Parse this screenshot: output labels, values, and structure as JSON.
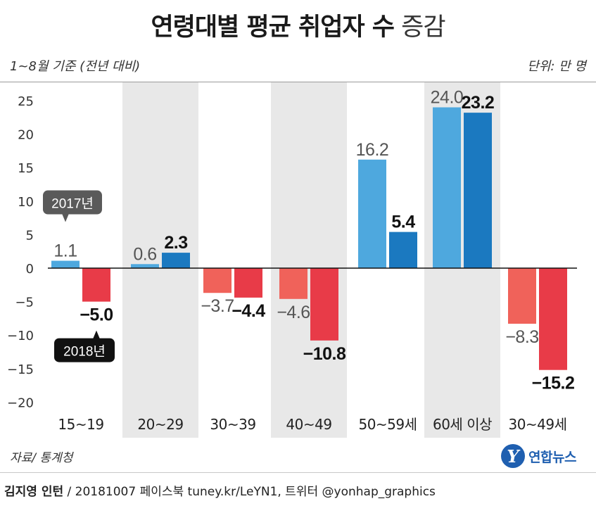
{
  "title": {
    "main": "연령대별 평균 취업자 수",
    "accent": "증감"
  },
  "subtitle": "1~8월 기준 (전년 대비)",
  "unit": "단위: 만 명",
  "source": "자료/ 통계청",
  "logo": {
    "mark": "Y",
    "text": "연합뉴스"
  },
  "credit": {
    "author": "김지영 인턴",
    "rest": " / 20181007  페이스북 tuney.kr/LeYN1, 트위터 @yonhap_graphics"
  },
  "chart_data": {
    "type": "bar",
    "title": "연령대별 평균 취업자 수 증감",
    "xlabel": "",
    "ylabel": "",
    "ylim": [
      -20,
      25
    ],
    "yticks": [
      25,
      20,
      15,
      10,
      5,
      0,
      -5,
      -10,
      -15,
      -20
    ],
    "ytick_labels": [
      "25",
      "20",
      "15",
      "10",
      "5",
      "0",
      "−5",
      "−10",
      "−15",
      "−20"
    ],
    "categories": [
      "15~19",
      "20~29",
      "30~39",
      "40~49",
      "50~59세",
      "60세 이상",
      "30~49세"
    ],
    "series": [
      {
        "name": "2017년",
        "values": [
          1.1,
          0.6,
          -3.7,
          -4.6,
          16.2,
          24.0,
          -8.3
        ],
        "labels": [
          "1.1",
          "0.6",
          "−3.7",
          "−4.6",
          "16.2",
          "24.0",
          "−8.3"
        ]
      },
      {
        "name": "2018년",
        "values": [
          -5.0,
          2.3,
          -4.4,
          -10.8,
          5.4,
          23.2,
          -15.2
        ],
        "labels": [
          "−5.0",
          "2.3",
          "−4.4",
          "−10.8",
          "5.4",
          "23.2",
          "−15.2"
        ]
      }
    ],
    "shaded_categories": [
      "20~29",
      "40~49",
      "60세 이상"
    ],
    "legend": "callouts-on-first-category",
    "colors": {
      "pos_2017": "#4ea8de",
      "pos_2018": "#1b79c0",
      "neg_2017": "#f0625a",
      "neg_2018": "#e83b48",
      "band": "#e8e8e8",
      "zero_line": "#111111",
      "callout_2017": "#5a5a5a",
      "callout_2018": "#111111"
    }
  }
}
